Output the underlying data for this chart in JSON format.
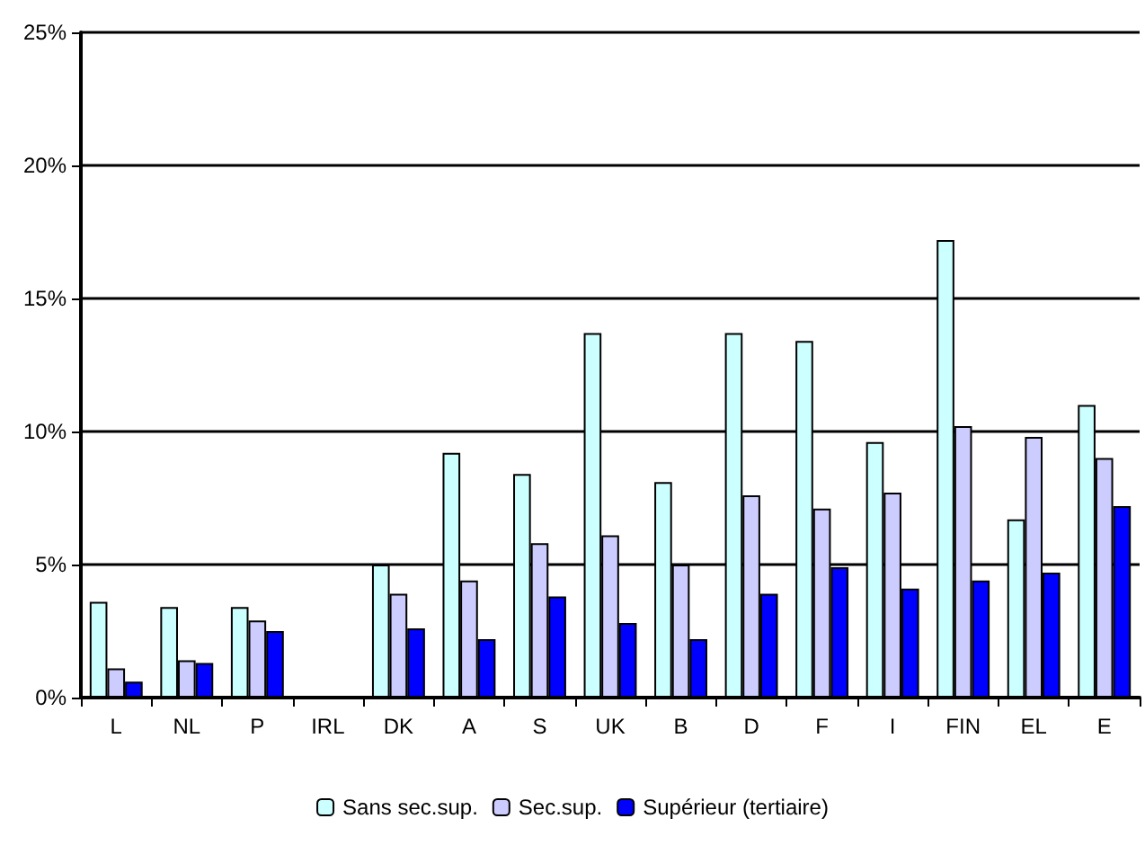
{
  "chart_data": {
    "type": "bar",
    "categories": [
      "L",
      "NL",
      "P",
      "IRL",
      "DK",
      "A",
      "S",
      "UK",
      "B",
      "D",
      "F",
      "I",
      "FIN",
      "EL",
      "E"
    ],
    "series": [
      {
        "name": "Sans sec.sup.",
        "color": "#ccffff",
        "values": [
          3.6,
          3.4,
          3.4,
          null,
          5.0,
          9.2,
          8.4,
          13.7,
          8.1,
          13.7,
          13.4,
          9.6,
          17.2,
          6.7,
          11.0
        ]
      },
      {
        "name": "Sec.sup.",
        "color": "#ccccff",
        "values": [
          1.1,
          1.4,
          2.9,
          null,
          3.9,
          4.4,
          5.8,
          6.1,
          5.0,
          7.6,
          7.1,
          7.7,
          10.2,
          9.8,
          9.0
        ]
      },
      {
        "name": "Supérieur (tertiaire)",
        "color": "#0000ff",
        "values": [
          0.6,
          1.3,
          2.5,
          null,
          2.6,
          2.2,
          3.8,
          2.8,
          2.2,
          3.9,
          4.9,
          4.1,
          4.4,
          4.7,
          7.2
        ]
      }
    ],
    "ylim": [
      0,
      25
    ],
    "yticks": [
      {
        "value": 0,
        "label": "0%"
      },
      {
        "value": 5,
        "label": "5%"
      },
      {
        "value": 10,
        "label": "10%"
      },
      {
        "value": 15,
        "label": "15%"
      },
      {
        "value": 20,
        "label": "20%"
      },
      {
        "value": 25,
        "label": "25%"
      }
    ],
    "grid": "y",
    "legend": "bottom"
  }
}
